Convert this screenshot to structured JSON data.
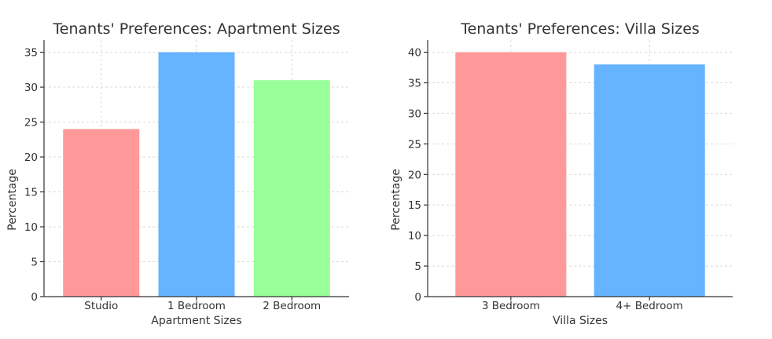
{
  "chart_data": [
    {
      "type": "bar",
      "title": "Tenants' Preferences: Apartment Sizes",
      "xlabel": "Apartment Sizes",
      "ylabel": "Percentage",
      "categories": [
        "Studio",
        "1 Bedroom",
        "2 Bedroom"
      ],
      "values": [
        24,
        35,
        31
      ],
      "colors": [
        "#ff9999",
        "#66b3ff",
        "#99ff99"
      ],
      "ylim": [
        0,
        36.75
      ],
      "yticks": [
        0,
        5,
        10,
        15,
        20,
        25,
        30,
        35
      ],
      "grid": true
    },
    {
      "type": "bar",
      "title": "Tenants' Preferences: Villa Sizes",
      "xlabel": "Villa Sizes",
      "ylabel": "Percentage",
      "categories": [
        "3 Bedroom",
        "4+ Bedroom"
      ],
      "values": [
        40,
        38
      ],
      "colors": [
        "#ff9999",
        "#66b3ff"
      ],
      "ylim": [
        0,
        42
      ],
      "yticks": [
        0,
        5,
        10,
        15,
        20,
        25,
        30,
        35,
        40
      ],
      "grid": true
    }
  ]
}
